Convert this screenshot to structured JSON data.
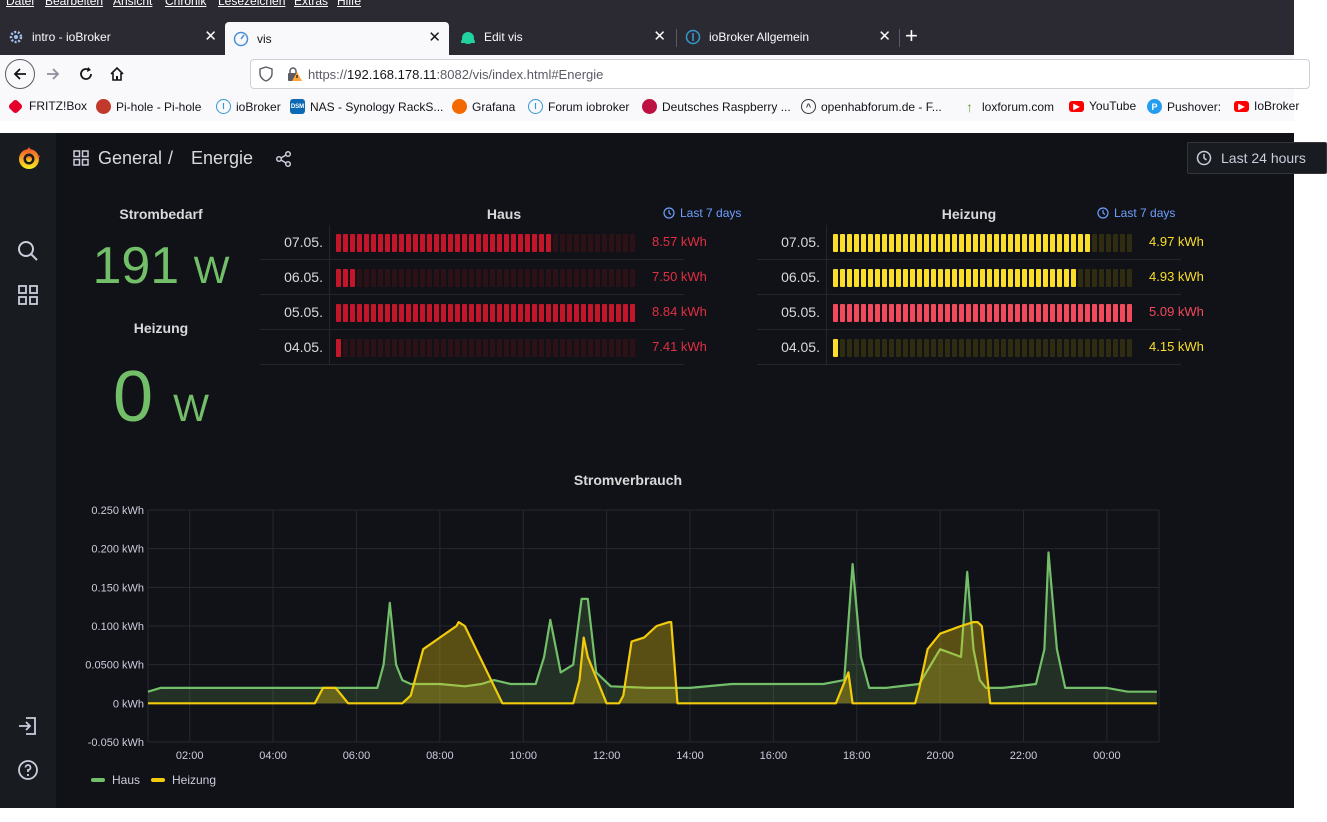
{
  "menubar": [
    "Datei",
    "Bearbeiten",
    "Ansicht",
    "Chronik",
    "Lesezeichen",
    "Extras",
    "Hilfe"
  ],
  "tabs": [
    {
      "title": "intro - ioBroker",
      "icon": "gear-icon"
    },
    {
      "title": "vis",
      "icon": "vis-icon"
    },
    {
      "title": "Edit vis",
      "icon": "edit-vis-icon"
    },
    {
      "title": "ioBroker Allgemein",
      "icon": "iobroker-icon"
    }
  ],
  "url": {
    "prefix": "https://",
    "host": "192.168.178.11",
    "rest": ":8082/vis/index.html#Energie"
  },
  "bookmarks": [
    "FRITZ!Box",
    "Pi-hole - Pi-hole",
    "ioBroker",
    "NAS - Synology RackS...",
    "Grafana",
    "Forum iobroker",
    "Deutsches Raspberry ...",
    "openhabforum.de - F...",
    "loxforum.com",
    "YouTube",
    "Pushover:",
    "IoBroker"
  ],
  "breadcrumb": {
    "folder": "General",
    "separator": "/",
    "dashboard": "Energie"
  },
  "timepicker": "Last 24 hours",
  "stat_strom": {
    "title": "Strombedarf",
    "value": "191",
    "unit": "W"
  },
  "stat_heizung": {
    "title": "Heizung",
    "value": "0",
    "unit": "W"
  },
  "haus": {
    "title": "Haus",
    "range": "Last 7 days",
    "rows": [
      {
        "date": "07.05.",
        "value": "8.57 kWh",
        "level": 0.72
      },
      {
        "date": "06.05.",
        "value": "7.50 kWh",
        "level": 0.07
      },
      {
        "date": "05.05.",
        "value": "8.84 kWh",
        "level": 1.0
      },
      {
        "date": "04.05.",
        "value": "7.41 kWh",
        "level": 0.02
      }
    ]
  },
  "heizung": {
    "title": "Heizung",
    "range": "Last 7 days",
    "rows": [
      {
        "date": "07.05.",
        "value": "4.97 kWh",
        "level": 0.86,
        "color": "#fade2a"
      },
      {
        "date": "06.05.",
        "value": "4.93 kWh",
        "level": 0.82,
        "color": "#fade2a"
      },
      {
        "date": "05.05.",
        "value": "5.09 kWh",
        "level": 1.0,
        "color": "#f2495c"
      },
      {
        "date": "04.05.",
        "value": "4.15 kWh",
        "level": 0.02,
        "color": "#fade2a"
      }
    ]
  },
  "colors": {
    "haus_bar": "#c4162a",
    "haus_text": "#e02f44",
    "heiz_bar": "#fade2a",
    "green": "#73bf69",
    "yellow": "#fade2a",
    "haus_line": "#73bf69",
    "heiz_line": "#f2cc0c"
  },
  "chart_data": {
    "type": "line",
    "title": "Stromverbrauch",
    "xlabel": "",
    "ylabel": "",
    "x_ticks": [
      "02:00",
      "04:00",
      "06:00",
      "08:00",
      "10:00",
      "12:00",
      "14:00",
      "16:00",
      "18:00",
      "20:00",
      "22:00",
      "00:00"
    ],
    "y_ticks": [
      "0.250 kWh",
      "0.200 kWh",
      "0.150 kWh",
      "0.100 kWh",
      "0.0500 kWh",
      "0 kWh",
      "-0.050 kWh"
    ],
    "x_range": [
      1.0,
      25.25
    ],
    "ylim": [
      -0.05,
      0.25
    ],
    "grid": true,
    "legend_position": "bottom-left",
    "series": [
      {
        "name": "Haus",
        "x": [
          1.0,
          1.3,
          2,
          3,
          4,
          4.8,
          5.2,
          5.5,
          6.5,
          6.65,
          6.8,
          6.95,
          7.1,
          7.3,
          8,
          8.6,
          9.0,
          9.3,
          9.7,
          10.3,
          10.5,
          10.65,
          10.9,
          11.2,
          11.4,
          11.55,
          11.75,
          12.1,
          13.0,
          14.0,
          15.0,
          16.0,
          16.5,
          17.2,
          17.7,
          17.9,
          18.1,
          18.3,
          18.7,
          19.5,
          20.0,
          20.5,
          20.65,
          20.8,
          20.95,
          21.1,
          21.5,
          22.3,
          22.5,
          22.6,
          22.8,
          23.0,
          23.5,
          24.0,
          24.5,
          25.2
        ],
        "values": [
          0.015,
          0.02,
          0.02,
          0.02,
          0.02,
          0.02,
          0.02,
          0.02,
          0.02,
          0.05,
          0.13,
          0.05,
          0.03,
          0.025,
          0.025,
          0.022,
          0.025,
          0.03,
          0.025,
          0.025,
          0.06,
          0.108,
          0.04,
          0.05,
          0.135,
          0.135,
          0.04,
          0.022,
          0.02,
          0.02,
          0.025,
          0.025,
          0.025,
          0.025,
          0.03,
          0.18,
          0.06,
          0.02,
          0.02,
          0.025,
          0.07,
          0.06,
          0.17,
          0.07,
          0.03,
          0.02,
          0.02,
          0.025,
          0.07,
          0.195,
          0.07,
          0.02,
          0.02,
          0.02,
          0.015,
          0.015
        ]
      },
      {
        "name": "Heizung",
        "x": [
          1.0,
          4.9,
          5.0,
          5.2,
          5.5,
          5.65,
          5.8,
          6.5,
          7.0,
          7.1,
          7.3,
          7.6,
          8.0,
          8.4,
          8.45,
          8.6,
          9.5,
          10.5,
          11.1,
          11.2,
          11.35,
          11.45,
          11.55,
          12.0,
          12.3,
          12.4,
          12.6,
          12.9,
          13.2,
          13.5,
          13.55,
          13.7,
          14.5,
          16.0,
          17.5,
          17.8,
          17.9,
          18.0,
          19.0,
          19.4,
          19.5,
          19.7,
          20.0,
          20.5,
          20.8,
          20.9,
          21.0,
          21.2,
          22.0,
          24.0,
          25.2
        ],
        "values": [
          0,
          0,
          0,
          0.02,
          0.02,
          0.01,
          0,
          0,
          0,
          0,
          0.01,
          0.07,
          0.085,
          0.1,
          0.105,
          0.1,
          0,
          0,
          0,
          0,
          0.03,
          0.085,
          0.06,
          0,
          0,
          0.01,
          0.08,
          0.085,
          0.1,
          0.105,
          0.105,
          0,
          0,
          0,
          0,
          0.04,
          0,
          0,
          0,
          0,
          0.02,
          0.07,
          0.09,
          0.1,
          0.105,
          0.105,
          0.1,
          0,
          0,
          0,
          0
        ]
      }
    ]
  }
}
